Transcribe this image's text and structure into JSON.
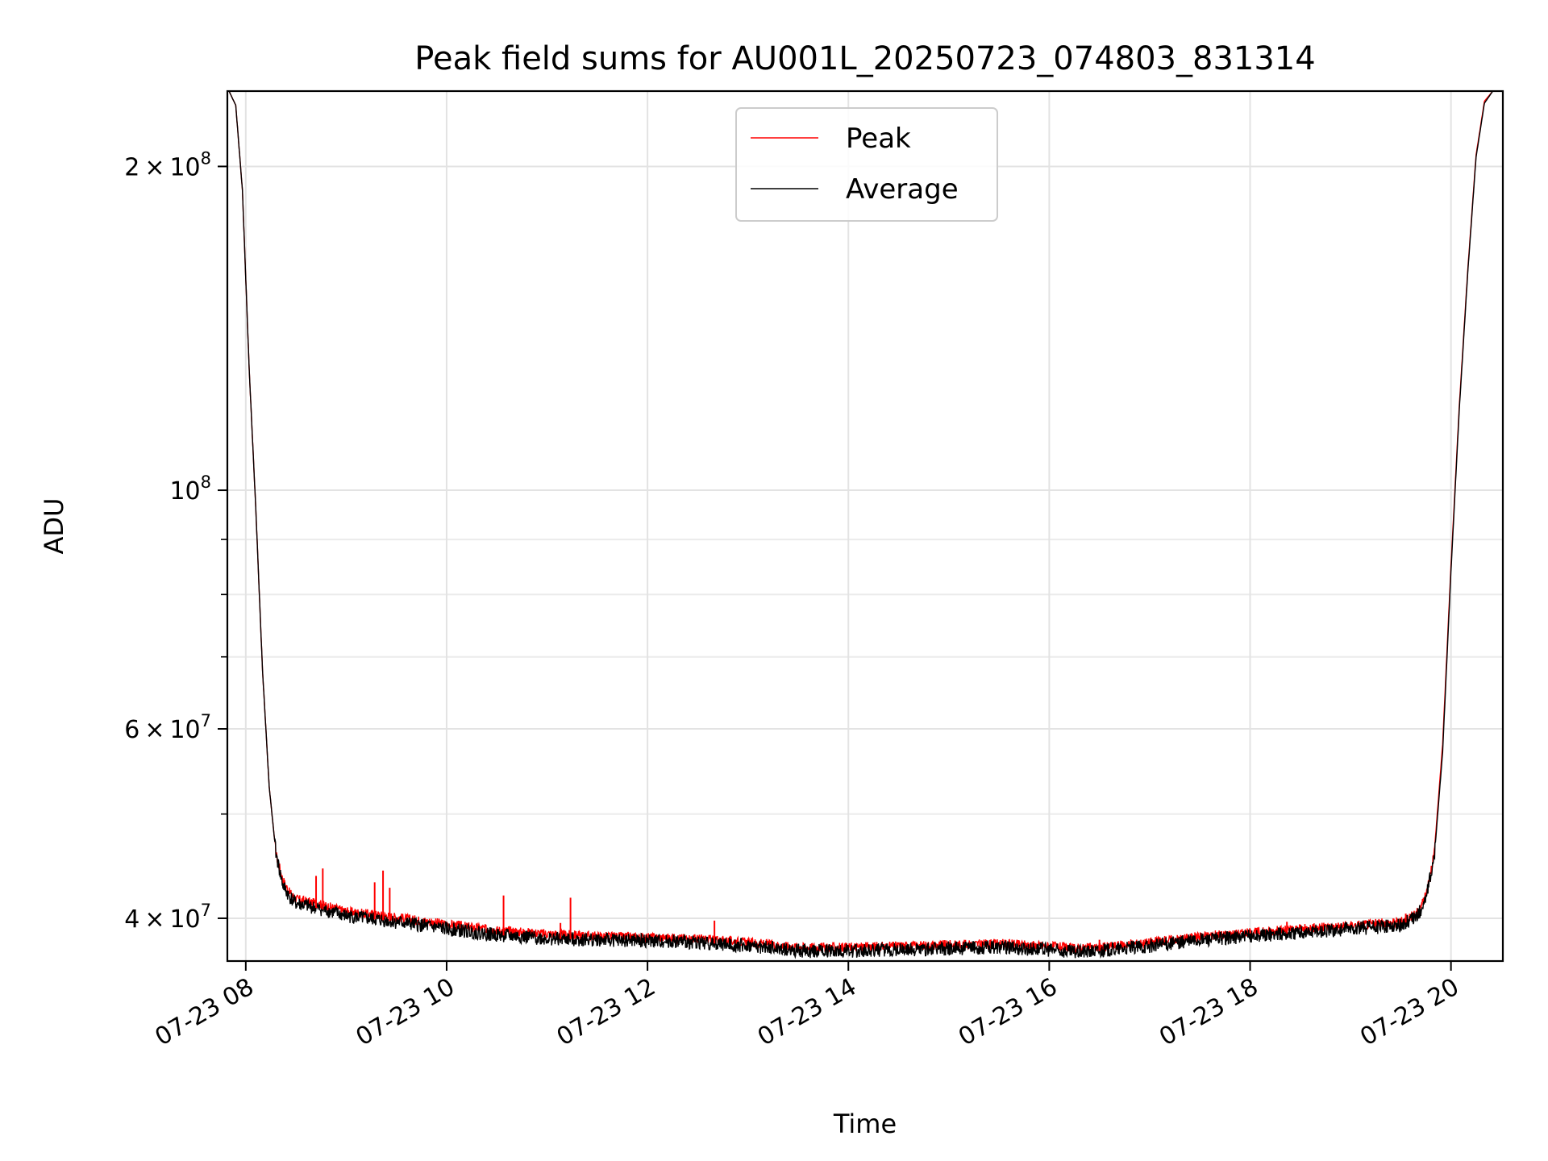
{
  "chart_data": {
    "type": "line",
    "title": "Peak field sums for AU001L_20250723_074803_831314",
    "xlabel": "Time",
    "ylabel": "ADU",
    "y_scale": "log",
    "xlim": [
      "07-23 07:49",
      "07-23 20:31"
    ],
    "ylim": [
      36500000,
      235000000
    ],
    "grid": true,
    "legend_position": "upper center",
    "x_ticks": [
      "07-23 08",
      "07-23 10",
      "07-23 12",
      "07-23 14",
      "07-23 16",
      "07-23 18",
      "07-23 20"
    ],
    "y_ticks": [
      {
        "value": 200000000,
        "mantissa": "2",
        "exponent": "8"
      },
      {
        "value": 100000000,
        "mantissa": "",
        "exponent": "8"
      },
      {
        "value": 60000000,
        "mantissa": "6",
        "exponent": "7"
      },
      {
        "value": 40000000,
        "mantissa": "4",
        "exponent": "7"
      }
    ],
    "series": [
      {
        "name": "Peak",
        "color": "#ff0000",
        "x": [
          "07:50",
          "07:54",
          "07:58",
          "08:02",
          "08:06",
          "08:10",
          "08:14",
          "08:18",
          "08:22",
          "08:26",
          "08:30",
          "08:45",
          "09:00",
          "09:30",
          "10:00",
          "10:30",
          "11:00",
          "11:30",
          "12:00",
          "12:30",
          "13:00",
          "13:30",
          "14:00",
          "14:30",
          "15:00",
          "15:30",
          "16:00",
          "16:15",
          "16:30",
          "17:00",
          "17:30",
          "18:00",
          "18:30",
          "19:00",
          "19:30",
          "19:40",
          "19:45",
          "19:50",
          "19:55",
          "20:00",
          "20:05",
          "20:10",
          "20:15",
          "20:20",
          "20:25"
        ],
        "values": [
          235000000,
          228000000,
          190000000,
          130000000,
          96000000,
          68000000,
          53000000,
          46000000,
          43500000,
          42300000,
          41700000,
          41200000,
          40600000,
          40100000,
          39500000,
          39000000,
          38700000,
          38500000,
          38400000,
          38300000,
          38000000,
          37600000,
          37600000,
          37700000,
          37800000,
          37900000,
          37700000,
          37500000,
          37600000,
          38000000,
          38500000,
          38800000,
          39100000,
          39400000,
          39700000,
          40500000,
          42000000,
          46000000,
          58000000,
          85000000,
          120000000,
          160000000,
          205000000,
          230000000,
          235000000
        ]
      },
      {
        "name": "Average",
        "color": "#000000",
        "x": [
          "07:50",
          "07:54",
          "07:58",
          "08:02",
          "08:06",
          "08:10",
          "08:14",
          "08:18",
          "08:22",
          "08:26",
          "08:30",
          "08:45",
          "09:00",
          "09:30",
          "10:00",
          "10:30",
          "11:00",
          "11:30",
          "12:00",
          "12:30",
          "13:00",
          "13:30",
          "14:00",
          "14:30",
          "15:00",
          "15:30",
          "16:00",
          "16:15",
          "16:30",
          "17:00",
          "17:30",
          "18:00",
          "18:30",
          "19:00",
          "19:30",
          "19:40",
          "19:45",
          "19:50",
          "19:55",
          "20:00",
          "20:05",
          "20:10",
          "20:15",
          "20:20",
          "20:25"
        ],
        "values": [
          235000000,
          228000000,
          190000000,
          130000000,
          96000000,
          68000000,
          53000000,
          46000000,
          43000000,
          41900000,
          41300000,
          40800000,
          40200000,
          39700000,
          39100000,
          38600000,
          38300000,
          38200000,
          38100000,
          38000000,
          37700000,
          37300000,
          37300000,
          37400000,
          37500000,
          37600000,
          37400000,
          37200000,
          37300000,
          37700000,
          38200000,
          38500000,
          38800000,
          39100000,
          39400000,
          40200000,
          41700000,
          45500000,
          57000000,
          84000000,
          119000000,
          159000000,
          204000000,
          229000000,
          235000000
        ]
      }
    ],
    "peak_spikes": [
      {
        "x": "08:42",
        "value": 43800000
      },
      {
        "x": "08:46",
        "value": 44500000
      },
      {
        "x": "09:17",
        "value": 43200000
      },
      {
        "x": "09:22",
        "value": 44300000
      },
      {
        "x": "09:26",
        "value": 42700000
      },
      {
        "x": "10:34",
        "value": 42000000
      },
      {
        "x": "11:08",
        "value": 39600000
      },
      {
        "x": "11:14",
        "value": 41800000
      },
      {
        "x": "12:40",
        "value": 39800000
      },
      {
        "x": "16:30",
        "value": 38200000
      },
      {
        "x": "18:22",
        "value": 39700000
      },
      {
        "x": "19:33",
        "value": 40400000
      }
    ]
  }
}
